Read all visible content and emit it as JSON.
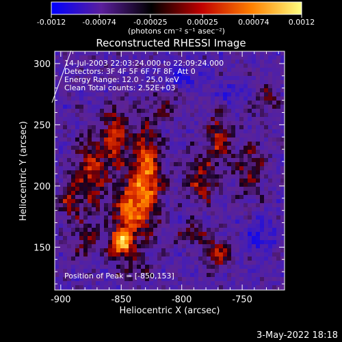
{
  "chart_data": {
    "type": "heatmap",
    "title": "Reconstructed RHESSI Image",
    "xlabel": "Heliocentric X (arcsec)",
    "ylabel": "Heliocentric Y (arcsec)",
    "xlim": [
      -905,
      -715
    ],
    "ylim": [
      115,
      310
    ],
    "xticks": [
      -900,
      -850,
      -800,
      -750
    ],
    "yticks": [
      150,
      200,
      250,
      300
    ],
    "colorbar": {
      "min": -0.0012,
      "max": 0.0012,
      "ticks": [
        "-0.0012",
        "-0.00074",
        "-0.00025",
        "0.00025",
        "0.00074",
        "0.0012"
      ],
      "tick_values": [
        -0.0012,
        -0.00074,
        -0.00025,
        0.00025,
        0.00074,
        0.0012
      ],
      "unit_label": "(photons cm⁻² s⁻¹ asec⁻²)",
      "colors": [
        "#0000ff",
        "#5b1f9c",
        "#000000",
        "#c00000",
        "#ff8000",
        "#ffff80"
      ]
    },
    "annotations": [
      "14-Jul-2003 22:03:24.000 to 22:09:24.000",
      "Detectors: 3F 4F 5F 6F 7F 8F, Att 0",
      "Energy Range: 12.0 - 25.0 keV",
      "Clean     Total counts: 2.52E+03"
    ],
    "peak_label": "Position of Peak = [-850,153]",
    "sources": [
      {
        "x": -830,
        "y": 205,
        "sx": 9,
        "sy": 28,
        "amp": 1.0
      },
      {
        "x": -850,
        "y": 153,
        "sx": 7,
        "sy": 8,
        "amp": 1.15
      },
      {
        "x": -845,
        "y": 180,
        "sx": 8,
        "sy": 15,
        "amp": 0.75
      },
      {
        "x": -855,
        "y": 240,
        "sx": 7,
        "sy": 18,
        "amp": 0.7
      },
      {
        "x": -875,
        "y": 210,
        "sx": 9,
        "sy": 22,
        "amp": 0.65
      },
      {
        "x": -893,
        "y": 190,
        "sx": 6,
        "sy": 12,
        "amp": 0.5
      },
      {
        "x": -785,
        "y": 205,
        "sx": 9,
        "sy": 15,
        "amp": 0.55
      },
      {
        "x": -770,
        "y": 240,
        "sx": 6,
        "sy": 15,
        "amp": 0.6
      },
      {
        "x": -745,
        "y": 215,
        "sx": 10,
        "sy": 18,
        "amp": 0.4
      },
      {
        "x": -770,
        "y": 145,
        "sx": 8,
        "sy": 8,
        "amp": 0.55
      },
      {
        "x": -790,
        "y": 160,
        "sx": 9,
        "sy": 6,
        "amp": 0.45
      },
      {
        "x": -880,
        "y": 155,
        "sx": 8,
        "sy": 10,
        "amp": 0.4
      },
      {
        "x": -730,
        "y": 270,
        "sx": 8,
        "sy": 8,
        "amp": 0.35
      },
      {
        "x": -815,
        "y": 265,
        "sx": 8,
        "sy": 8,
        "amp": 0.3
      },
      {
        "x": -840,
        "y": 130,
        "sx": 10,
        "sy": 6,
        "amp": 0.3
      },
      {
        "x": -800,
        "y": 290,
        "sx": 10,
        "sy": 6,
        "amp": -0.4
      },
      {
        "x": -735,
        "y": 160,
        "sx": 8,
        "sy": 10,
        "amp": -0.4
      },
      {
        "x": -760,
        "y": 275,
        "sx": 8,
        "sy": 6,
        "amp": -0.35
      }
    ]
  },
  "footer": {
    "date": "3-May-2022 18:18"
  }
}
